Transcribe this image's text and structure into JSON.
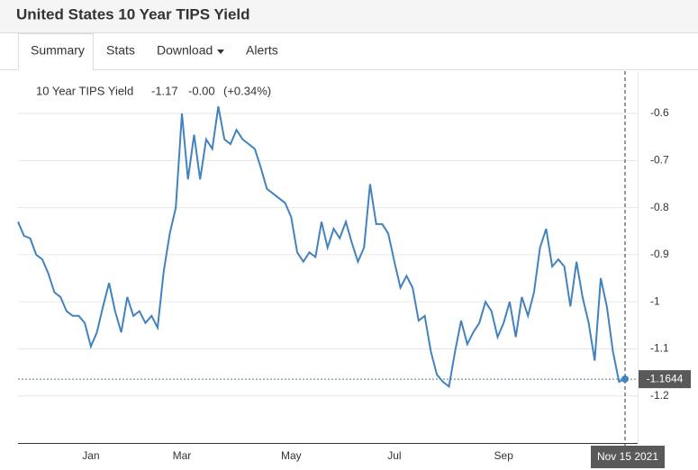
{
  "header": {
    "title": "United States 10 Year TIPS Yield"
  },
  "tabs": [
    "Summary",
    "Stats",
    "Download",
    "Alerts"
  ],
  "chart_data": {
    "type": "line",
    "legend": {
      "name": "10 Year TIPS Yield",
      "value": -1.17,
      "change": "-0.00",
      "change_pct": "(+0.34%)"
    },
    "categories": [
      null,
      null,
      null,
      null,
      null,
      null,
      null,
      null,
      null,
      null,
      null,
      null,
      "Jan",
      null,
      null,
      null,
      null,
      null,
      null,
      null,
      null,
      null,
      null,
      null,
      null,
      null,
      null,
      "Mar",
      null,
      null,
      null,
      null,
      null,
      null,
      null,
      null,
      null,
      null,
      null,
      null,
      null,
      null,
      null,
      null,
      null,
      "May",
      null,
      null,
      null,
      null,
      null,
      null,
      null,
      null,
      null,
      null,
      null,
      null,
      null,
      null,
      null,
      null,
      "Jul",
      null,
      null,
      null,
      null,
      null,
      null,
      null,
      null,
      null,
      null,
      null,
      null,
      null,
      null,
      null,
      null,
      null,
      "Sep",
      null,
      null,
      null,
      null,
      null,
      null,
      null,
      null,
      null,
      null,
      null,
      null,
      null,
      null,
      null,
      null,
      null,
      null,
      null,
      null
    ],
    "series": [
      {
        "name": "10 Year TIPS Yield",
        "color": "#4383bd",
        "values": [
          -0.83,
          -0.86,
          -0.865,
          -0.9,
          -0.91,
          -0.94,
          -0.98,
          -0.99,
          -1.02,
          -1.03,
          -1.03,
          -1.045,
          -1.095,
          -1.065,
          -1.01,
          -0.96,
          -1.02,
          -1.065,
          -0.99,
          -1.03,
          -1.02,
          -1.045,
          -1.03,
          -1.055,
          -0.935,
          -0.855,
          -0.8,
          -0.6,
          -0.74,
          -0.645,
          -0.74,
          -0.655,
          -0.675,
          -0.585,
          -0.655,
          -0.665,
          -0.635,
          -0.655,
          -0.665,
          -0.675,
          -0.715,
          -0.76,
          -0.77,
          -0.78,
          -0.79,
          -0.82,
          -0.895,
          -0.915,
          -0.895,
          -0.905,
          -0.83,
          -0.885,
          -0.845,
          -0.865,
          -0.83,
          -0.875,
          -0.915,
          -0.885,
          -0.75,
          -0.835,
          -0.835,
          -0.855,
          -0.915,
          -0.97,
          -0.945,
          -0.97,
          -1.04,
          -1.03,
          -1.105,
          -1.155,
          -1.17,
          -1.18,
          -1.105,
          -1.04,
          -1.09,
          -1.065,
          -1.045,
          -1,
          -1.02,
          -1.075,
          -1.045,
          -1,
          -1.075,
          -0.99,
          -1.03,
          -0.98,
          -0.885,
          -0.845,
          -0.925,
          -0.91,
          -0.925,
          -1.01,
          -0.915,
          -0.99,
          -1.045,
          -1.125,
          -0.95,
          -1.01,
          -1.105,
          -1.17,
          -1.164
        ]
      }
    ],
    "last_value": -1.1644,
    "crosshair_label": "Nov 15 2021",
    "ylim": [
      -1.3,
      -0.51
    ],
    "yticks": [
      -0.6,
      -0.7,
      -0.8,
      -0.9,
      -1,
      -1.1,
      -1.2
    ],
    "grid": true
  }
}
